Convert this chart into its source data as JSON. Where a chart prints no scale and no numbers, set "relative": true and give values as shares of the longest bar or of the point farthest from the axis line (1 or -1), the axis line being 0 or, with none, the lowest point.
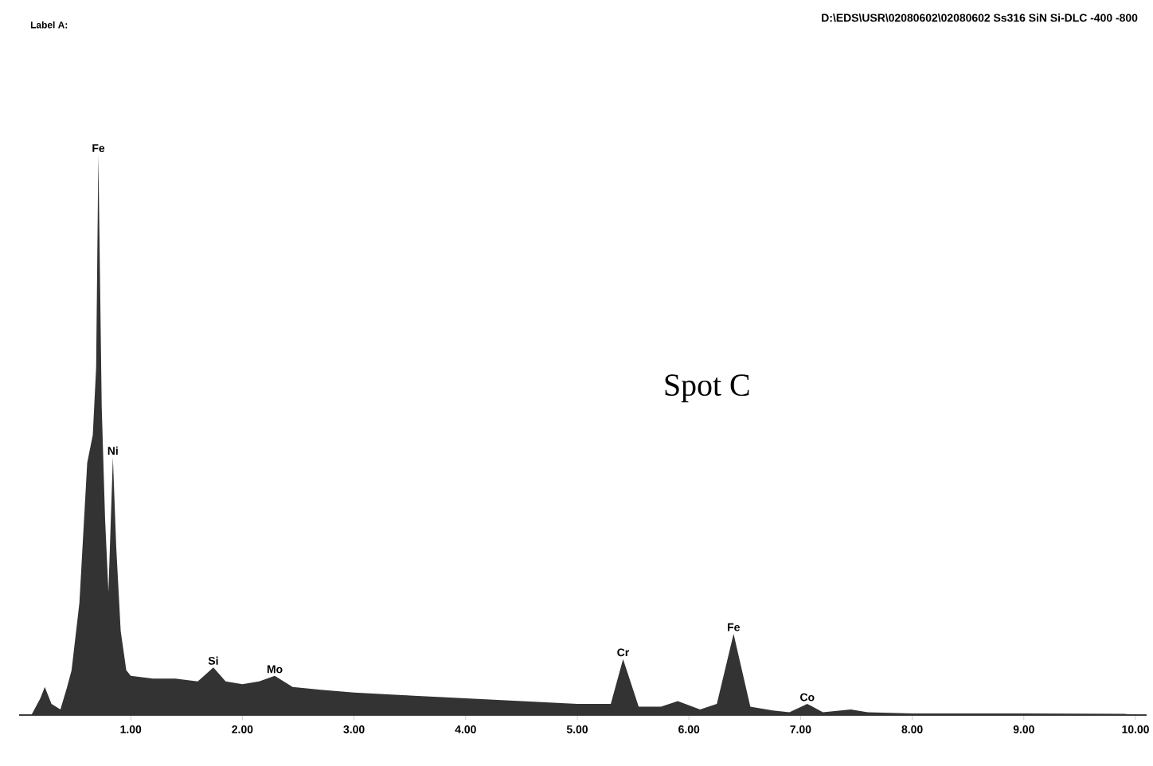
{
  "chart_data": {
    "type": "area",
    "title": "D:\\EDS\\USR\\02080602\\02080602 Ss316 SiN Si-DLC -400 -800",
    "relative": true,
    "color": "#333333",
    "x": [
      0.11,
      0.19,
      0.23,
      0.29,
      0.37,
      0.43,
      0.47,
      0.54,
      0.61,
      0.66,
      0.69,
      0.71,
      0.74,
      0.77,
      0.8,
      0.84,
      0.87,
      0.91,
      0.96,
      1.0,
      1.2,
      1.4,
      1.6,
      1.74,
      1.85,
      2.0,
      2.15,
      2.29,
      2.45,
      2.7,
      3.0,
      3.5,
      4.0,
      4.5,
      5.0,
      5.3,
      5.41,
      5.55,
      5.75,
      5.9,
      6.1,
      6.25,
      6.4,
      6.55,
      6.75,
      6.9,
      7.06,
      7.2,
      7.45,
      7.6,
      8.0,
      9.0,
      9.9,
      10.0
    ],
    "values": [
      0,
      0.03,
      0.05,
      0.02,
      0.01,
      0.05,
      0.08,
      0.2,
      0.45,
      0.5,
      0.62,
      1.0,
      0.55,
      0.35,
      0.22,
      0.46,
      0.3,
      0.15,
      0.08,
      0.07,
      0.065,
      0.065,
      0.06,
      0.085,
      0.06,
      0.055,
      0.06,
      0.07,
      0.05,
      0.045,
      0.04,
      0.035,
      0.03,
      0.025,
      0.02,
      0.02,
      0.1,
      0.015,
      0.015,
      0.025,
      0.01,
      0.02,
      0.145,
      0.015,
      0.008,
      0.005,
      0.02,
      0.005,
      0.01,
      0.005,
      0.003,
      0.003,
      0.002,
      0
    ],
    "xlim": [
      0,
      10.1
    ],
    "xticks": [
      {
        "value": 1,
        "label": "1.00"
      },
      {
        "value": 2,
        "label": "2.00"
      },
      {
        "value": 3,
        "label": "3.00"
      },
      {
        "value": 4,
        "label": "4.00"
      },
      {
        "value": 5,
        "label": "5.00"
      },
      {
        "value": 6,
        "label": "6.00"
      },
      {
        "value": 7,
        "label": "7.00"
      },
      {
        "value": 8,
        "label": "8.00"
      },
      {
        "value": 9,
        "label": "9.00"
      },
      {
        "value": 10,
        "label": "10.00"
      }
    ],
    "annotations": [
      "Label A:",
      "Spot C",
      {
        "text": "Fe",
        "x": 0.71,
        "y": 1.0
      },
      {
        "text": "Ni",
        "x": 0.84,
        "y": 0.46
      },
      {
        "text": "Si",
        "x": 1.74,
        "y": 0.085
      },
      {
        "text": "Mo",
        "x": 2.29,
        "y": 0.07
      },
      {
        "text": "Cr",
        "x": 5.41,
        "y": 0.1
      },
      {
        "text": "Fe",
        "x": 6.4,
        "y": 0.145
      },
      {
        "text": "Co",
        "x": 7.06,
        "y": 0.02
      }
    ]
  }
}
